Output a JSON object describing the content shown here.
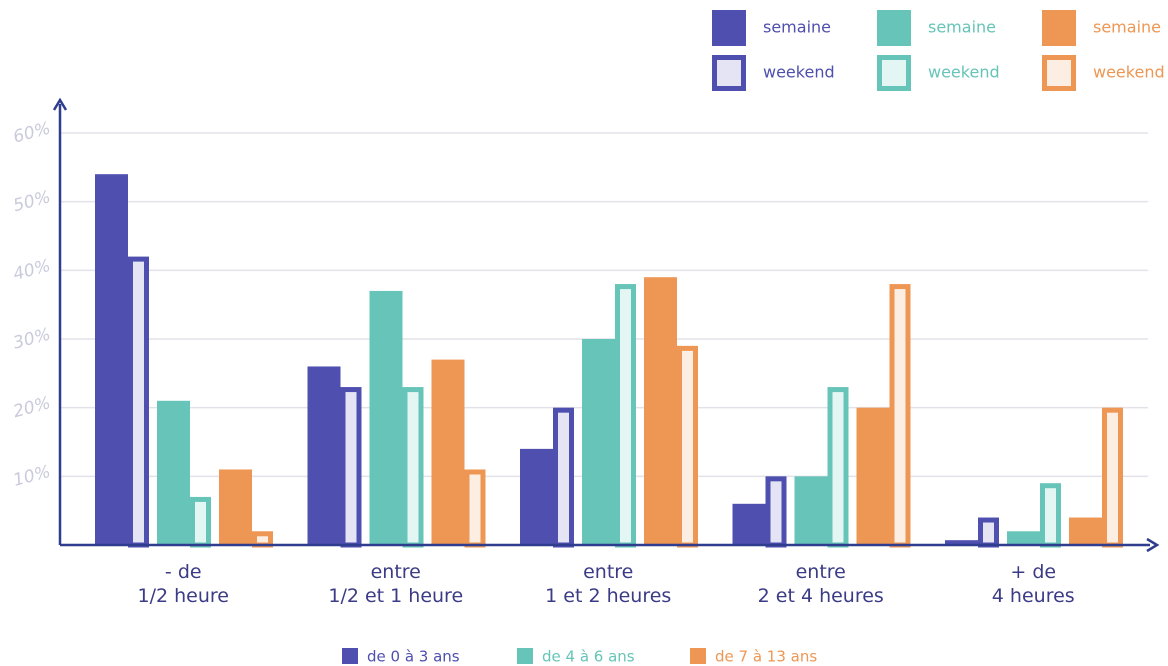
{
  "chart_data": {
    "type": "bar",
    "categories": [
      "- de\n1/2 heure",
      "entre\n1/2 et 1 heure",
      "entre\n1 et 2 heures",
      "entre\n2 et 4 heures",
      "+ de\n4 heures"
    ],
    "series": [
      {
        "name": "de 0 à 3 ans",
        "color": "#4e4fae",
        "light_color": "#e4e4f5",
        "parts": [
          {
            "name": "semaine",
            "values": [
              54,
              26,
              14,
              6,
              0.7
            ]
          },
          {
            "name": "weekend",
            "values": [
              42,
              23,
              20,
              10,
              4
            ]
          }
        ]
      },
      {
        "name": "de 4 à 6 ans",
        "color": "#66c4b8",
        "light_color": "#e3f6f3",
        "parts": [
          {
            "name": "semaine",
            "values": [
              21,
              37,
              30,
              10,
              2
            ]
          },
          {
            "name": "weekend",
            "values": [
              7,
              23,
              38,
              23,
              9
            ]
          }
        ]
      },
      {
        "name": "de 7 à 13 ans",
        "color": "#ee9754",
        "light_color": "#fdeee3",
        "parts": [
          {
            "name": "semaine",
            "values": [
              11,
              27,
              39,
              20,
              4
            ]
          },
          {
            "name": "weekend",
            "values": [
              2,
              11,
              29,
              38,
              20
            ]
          }
        ]
      }
    ],
    "ylim": [
      0,
      60
    ],
    "yticks": [
      {
        "value": 10,
        "label": "10%"
      },
      {
        "value": 20,
        "label": "20%"
      },
      {
        "value": 30,
        "label": "30%"
      },
      {
        "value": 40,
        "label": "40%"
      },
      {
        "value": 50,
        "label": "50%"
      },
      {
        "value": 60,
        "label": "60%"
      }
    ],
    "grid": true
  }
}
